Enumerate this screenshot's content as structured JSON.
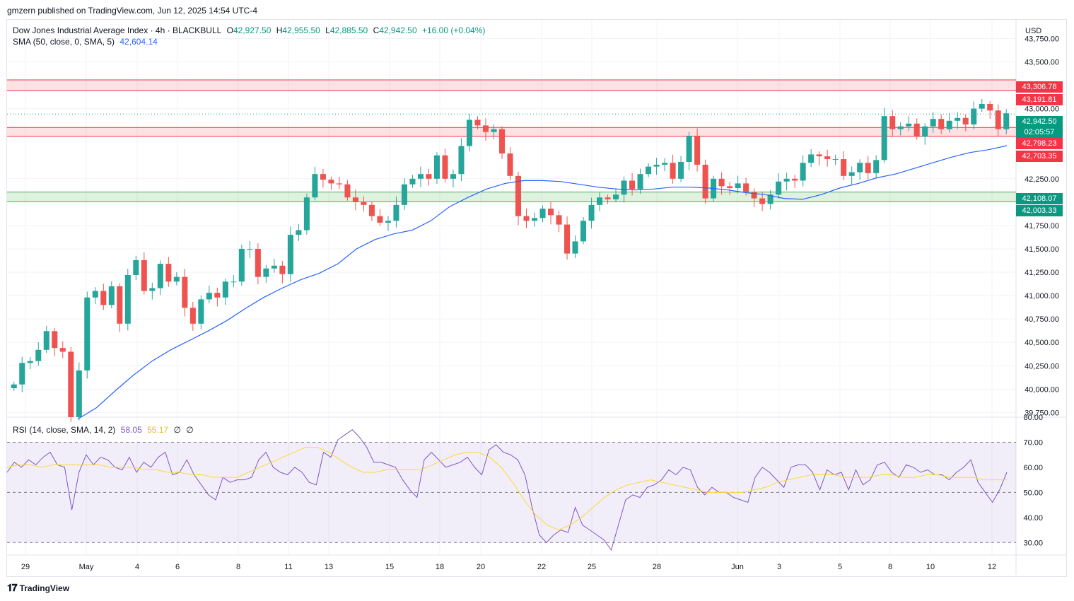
{
  "header": {
    "publisher": "gmzern published on TradingView.com, Jun 12, 2025 14:54 UTC-4"
  },
  "symbol": {
    "name": "Dow Jones Industrial Average Index",
    "interval": "4h",
    "source": "BLACKBULL",
    "open_label": "O",
    "open": "42,927.50",
    "high_label": "H",
    "high": "42,955.50",
    "low_label": "L",
    "low": "42,885.50",
    "close_label": "C",
    "close": "42,942.50",
    "change": "+16.00 (+0.04%)"
  },
  "sma": {
    "label": "SMA (50, close, 0, SMA, 5)",
    "value": "42,604.14"
  },
  "rsi": {
    "label": "RSI (14, close, SMA, 14, 2)",
    "value": "58.05",
    "sma_value": "55.17",
    "extra1": "∅",
    "extra2": "∅"
  },
  "currency": "USD",
  "footer": {
    "brand": "TradingView"
  },
  "colors": {
    "up": "#26a69a",
    "down": "#ef5350",
    "sma": "#2962ff",
    "rsi": "#7e57c2",
    "rsi_sma": "#fdd835",
    "resistance": "#f23645",
    "support": "#4caf50"
  },
  "price_labels": {
    "r1_top": "43,306.78",
    "r1_bottom": "43,191.81",
    "last": "42,942.50",
    "countdown": "02:05:57",
    "r2_top": "42,798.23",
    "r2_bottom": "42,703.35",
    "s1_top": "42,108.07",
    "s1_bottom": "42,003.33"
  },
  "chart_data": {
    "type": "candlestick",
    "y_axis_ticks": [
      "43,750.00",
      "43,500.00",
      "43,000.00",
      "42,250.00",
      "41,750.00",
      "41,500.00",
      "41,250.00",
      "41,000.00",
      "40,750.00",
      "40,500.00",
      "40,250.00",
      "40,000.00",
      "39,750.00"
    ],
    "y_axis_tick_values": [
      43750,
      43500,
      43000,
      42250,
      41750,
      41500,
      41250,
      41000,
      40750,
      40500,
      40250,
      40000,
      39750
    ],
    "ylim": [
      39700,
      43950
    ],
    "x_axis_labels": [
      "29",
      "May",
      "4",
      "6",
      "8",
      "11",
      "13",
      "15",
      "18",
      "20",
      "22",
      "25",
      "28",
      "Jun",
      "3",
      "5",
      "8",
      "10",
      "12"
    ],
    "zones": [
      {
        "type": "resistance",
        "top": 43306.78,
        "bottom": 43191.81
      },
      {
        "type": "resistance",
        "top": 42798.23,
        "bottom": 42703.35
      },
      {
        "type": "support",
        "top": 42108.07,
        "bottom": 42003.33
      }
    ],
    "last_price": 42942.5,
    "price_series": [
      40050,
      40280,
      40300,
      40420,
      40620,
      40440,
      40400,
      39700,
      40200,
      40980,
      41050,
      40900,
      41100,
      40700,
      41220,
      41380,
      41050,
      41080,
      41340,
      41150,
      41200,
      40870,
      40700,
      40960,
      41030,
      40980,
      41150,
      41150,
      41500,
      41500,
      41200,
      41290,
      41320,
      41230,
      41650,
      41700,
      42050,
      42300,
      42240,
      42200,
      42190,
      42050,
      42000,
      41970,
      41850,
      41780,
      41800,
      41970,
      42190,
      42250,
      42300,
      42250,
      42500,
      42250,
      42300,
      42600,
      42880,
      42820,
      42750,
      42780,
      42520,
      42280,
      41850,
      41800,
      41830,
      41930,
      41860,
      41760,
      41450,
      41580,
      41800,
      41970,
      42050,
      42030,
      42080,
      42230,
      42140,
      42300,
      42380,
      42400,
      42420,
      42250,
      42430,
      42710,
      42400,
      42040,
      42250,
      42170,
      42150,
      42200,
      42110,
      42040,
      41980,
      42080,
      42220,
      42250,
      42230,
      42420,
      42510,
      42490,
      42460,
      42460,
      42280,
      42320,
      42420,
      42310,
      42450,
      42920,
      42780,
      42810,
      42840,
      42700,
      42810,
      42890,
      42780,
      42870,
      42900,
      42830,
      43000,
      43050,
      42980,
      42780,
      42950
    ],
    "sma_series": [
      39680,
      39800,
      39980,
      40150,
      40300,
      40420,
      40520,
      40620,
      40730,
      40860,
      40980,
      41080,
      41170,
      41240,
      41340,
      41500,
      41600,
      41660,
      41700,
      41800,
      41950,
      42050,
      42140,
      42200,
      42230,
      42230,
      42220,
      42190,
      42160,
      42140,
      42130,
      42140,
      42160,
      42160,
      42150,
      42130,
      42100,
      42080,
      42040,
      42030,
      42080,
      42150,
      42200,
      42260,
      42300,
      42360,
      42420,
      42480,
      42530,
      42560,
      42604
    ],
    "rsi": {
      "ylim": [
        25,
        80
      ],
      "ticks": [
        "80.00",
        "70.00",
        "60.00",
        "50.00",
        "40.00",
        "30.00"
      ],
      "tick_values": [
        80,
        70,
        60,
        50,
        40,
        30
      ],
      "rsi_series": [
        58,
        62,
        60,
        63,
        61,
        64,
        66,
        61,
        60,
        43,
        58,
        65,
        61,
        64,
        63,
        60,
        59,
        64,
        58,
        62,
        60,
        64,
        66,
        57,
        58,
        63,
        57,
        53,
        49,
        47,
        56,
        54,
        55,
        55,
        56,
        63,
        66,
        60,
        58,
        57,
        60,
        58,
        54,
        53,
        66,
        64,
        71,
        73,
        75,
        72,
        68,
        62,
        62,
        61,
        60,
        55,
        51,
        48,
        63,
        66,
        63,
        60,
        61,
        62,
        64,
        60,
        57,
        67,
        69,
        66,
        65,
        63,
        57,
        44,
        33,
        30,
        33,
        35,
        34,
        44,
        37,
        35,
        33,
        31,
        27,
        37,
        47,
        49,
        48,
        52,
        53,
        55,
        59,
        57,
        60,
        59,
        52,
        49,
        52,
        50,
        50,
        48,
        47,
        46,
        56,
        60,
        58,
        55,
        52,
        60,
        61,
        61,
        58,
        51,
        59,
        57,
        58,
        51,
        59,
        53,
        55,
        61,
        62,
        58,
        56,
        61,
        60,
        58,
        59,
        57,
        57,
        55,
        58,
        60,
        63,
        54,
        50,
        46,
        51,
        58
      ],
      "rsi_sma_series": [
        60,
        61,
        61,
        60,
        61,
        61,
        61,
        61,
        61,
        60,
        60,
        60,
        59,
        59,
        58,
        58,
        57,
        57,
        56,
        56,
        56,
        58,
        60,
        62,
        64,
        66,
        68,
        68,
        66,
        63,
        60,
        58,
        58,
        59,
        59,
        59,
        59,
        61,
        63,
        65,
        66,
        66,
        64,
        60,
        54,
        47,
        41,
        37,
        35,
        37,
        40,
        44,
        48,
        51,
        53,
        54,
        55,
        54,
        53,
        52,
        51,
        50,
        50,
        50,
        50,
        51,
        52,
        54,
        55,
        56,
        57,
        57,
        57,
        56,
        56,
        56,
        57,
        57,
        56,
        56,
        57,
        57,
        56,
        56,
        56,
        55,
        55,
        55
      ]
    }
  }
}
